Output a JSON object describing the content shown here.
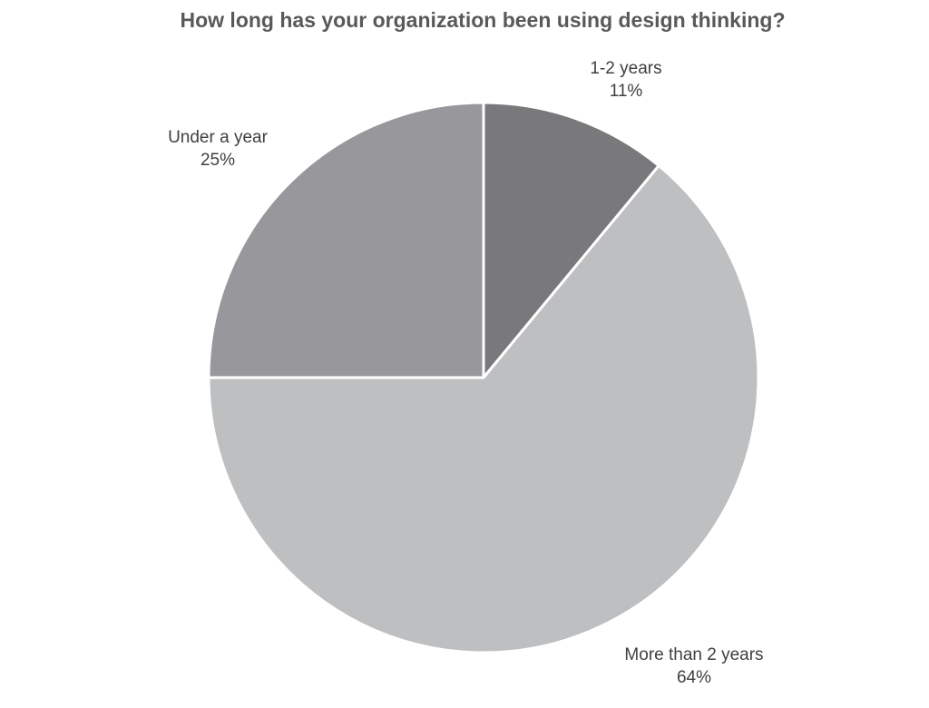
{
  "chart_data": {
    "type": "pie",
    "title": "How long has your organization been using design thinking?",
    "start": "12 o'clock",
    "direction": "clockwise",
    "slices": [
      {
        "label": "1-2 years",
        "value": 11,
        "value_label": "11%",
        "color": "#79797b"
      },
      {
        "label": "More than 2 years",
        "value": 64,
        "value_label": "64%",
        "color": "#bebfc1"
      },
      {
        "label": "Under a year",
        "value": 25,
        "value_label": "25%",
        "color": "#98989c"
      }
    ],
    "legend": "none",
    "data_labels": "outside",
    "border_color": "#ffffff"
  }
}
